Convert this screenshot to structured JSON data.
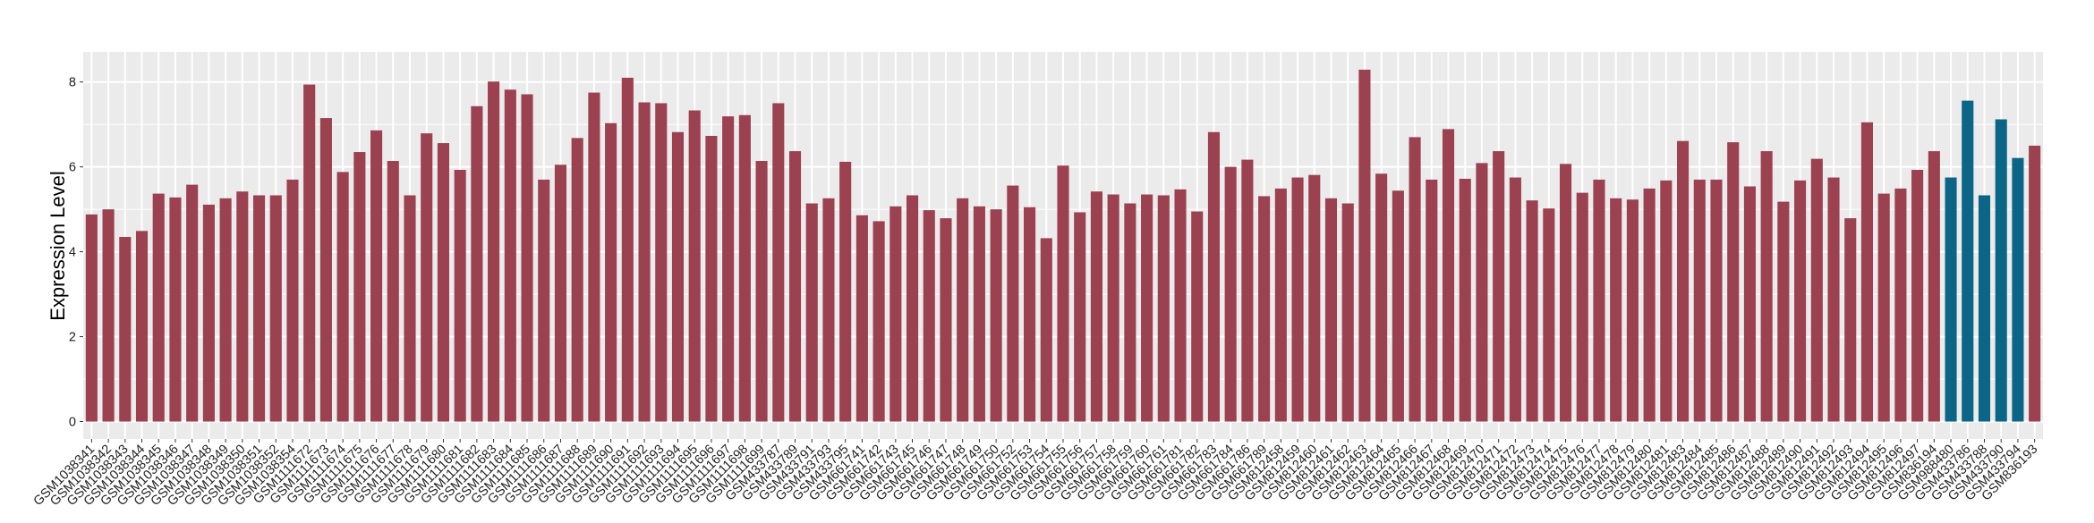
{
  "chart_data": {
    "type": "bar",
    "title": "",
    "xlabel": "",
    "ylabel": "Expression Level",
    "ylim": [
      -0.41,
      8.71
    ],
    "yticks": [
      0,
      2,
      4,
      6,
      8
    ],
    "grid": true,
    "colors": {
      "group1": "#9B4150",
      "group2": "#0B6586",
      "panel": "#EBEBEB"
    },
    "categories": [
      "GSM1038341",
      "GSM1038342",
      "GSM1038343",
      "GSM1038344",
      "GSM1038345",
      "GSM1038346",
      "GSM1038347",
      "GSM1038348",
      "GSM1038349",
      "GSM1038350",
      "GSM1038351",
      "GSM1038352",
      "GSM1038354",
      "GSM1111672",
      "GSM1111673",
      "GSM1111674",
      "GSM1111675",
      "GSM1111676",
      "GSM1111677",
      "GSM1111678",
      "GSM1111679",
      "GSM1111680",
      "GSM1111681",
      "GSM1111682",
      "GSM1111683",
      "GSM1111684",
      "GSM1111685",
      "GSM1111686",
      "GSM1111687",
      "GSM1111688",
      "GSM1111689",
      "GSM1111690",
      "GSM1111691",
      "GSM1111692",
      "GSM1111693",
      "GSM1111694",
      "GSM1111695",
      "GSM1111696",
      "GSM1111697",
      "GSM1111698",
      "GSM1111699",
      "GSM433787",
      "GSM433789",
      "GSM433791",
      "GSM433793",
      "GSM433795",
      "GSM661741",
      "GSM661742",
      "GSM661743",
      "GSM661745",
      "GSM661746",
      "GSM661747",
      "GSM661748",
      "GSM661749",
      "GSM661750",
      "GSM661752",
      "GSM661753",
      "GSM661754",
      "GSM661755",
      "GSM661756",
      "GSM661757",
      "GSM661758",
      "GSM661759",
      "GSM661760",
      "GSM661761",
      "GSM661781",
      "GSM661782",
      "GSM661783",
      "GSM661784",
      "GSM661786",
      "GSM661789",
      "GSM812458",
      "GSM812459",
      "GSM812460",
      "GSM812461",
      "GSM812462",
      "GSM812463",
      "GSM812464",
      "GSM812465",
      "GSM812466",
      "GSM812467",
      "GSM812468",
      "GSM812469",
      "GSM812470",
      "GSM812471",
      "GSM812472",
      "GSM812473",
      "GSM812474",
      "GSM812475",
      "GSM812476",
      "GSM812477",
      "GSM812478",
      "GSM812479",
      "GSM812480",
      "GSM812481",
      "GSM812483",
      "GSM812484",
      "GSM812485",
      "GSM812486",
      "GSM812487",
      "GSM812488",
      "GSM812489",
      "GSM812490",
      "GSM812491",
      "GSM812492",
      "GSM812493",
      "GSM812494",
      "GSM812495",
      "GSM812496",
      "GSM812497",
      "GSM836194",
      "GSM988480",
      "GSM433786",
      "GSM433788",
      "GSM433790",
      "GSM433794",
      "GSM836193"
    ],
    "values": [
      4.88,
      5.0,
      4.35,
      4.49,
      5.37,
      5.28,
      5.58,
      5.11,
      5.26,
      5.42,
      5.33,
      5.33,
      5.7,
      7.94,
      7.15,
      5.88,
      6.35,
      6.86,
      6.14,
      5.33,
      6.79,
      6.56,
      5.93,
      7.43,
      8.01,
      7.82,
      7.71,
      5.7,
      6.05,
      6.68,
      7.75,
      7.03,
      8.1,
      7.52,
      7.5,
      6.82,
      7.33,
      6.73,
      7.19,
      7.22,
      6.14,
      7.5,
      6.37,
      5.14,
      5.26,
      6.12,
      4.86,
      4.72,
      5.07,
      5.33,
      4.98,
      4.79,
      5.26,
      5.07,
      5.0,
      5.56,
      5.05,
      4.32,
      6.03,
      4.93,
      5.42,
      5.35,
      5.14,
      5.35,
      5.33,
      5.47,
      4.95,
      6.82,
      6.0,
      6.17,
      5.31,
      5.49,
      5.75,
      5.81,
      5.26,
      5.14,
      8.29,
      5.84,
      5.44,
      6.7,
      5.7,
      6.89,
      5.72,
      6.09,
      6.37,
      5.75,
      5.21,
      5.02,
      6.07,
      5.39,
      5.7,
      5.26,
      5.23,
      5.49,
      5.68,
      6.61,
      5.7,
      5.7,
      6.58,
      5.54,
      6.37,
      5.18,
      5.68,
      6.19,
      5.75,
      4.79,
      7.05,
      5.37,
      5.49,
      5.93,
      6.37,
      5.75,
      7.56,
      5.33,
      7.12,
      6.21,
      6.5
    ],
    "groups": [
      1,
      1,
      1,
      1,
      1,
      1,
      1,
      1,
      1,
      1,
      1,
      1,
      1,
      1,
      1,
      1,
      1,
      1,
      1,
      1,
      1,
      1,
      1,
      1,
      1,
      1,
      1,
      1,
      1,
      1,
      1,
      1,
      1,
      1,
      1,
      1,
      1,
      1,
      1,
      1,
      1,
      1,
      1,
      1,
      1,
      1,
      1,
      1,
      1,
      1,
      1,
      1,
      1,
      1,
      1,
      1,
      1,
      1,
      1,
      1,
      1,
      1,
      1,
      1,
      1,
      1,
      1,
      1,
      1,
      1,
      1,
      1,
      1,
      1,
      1,
      1,
      1,
      1,
      1,
      1,
      1,
      1,
      1,
      1,
      1,
      1,
      1,
      1,
      1,
      1,
      1,
      1,
      1,
      1,
      1,
      1,
      1,
      1,
      1,
      1,
      1,
      1,
      1,
      1,
      1,
      1,
      1,
      1,
      1,
      1,
      1,
      2,
      2,
      2,
      2,
      2
    ]
  }
}
